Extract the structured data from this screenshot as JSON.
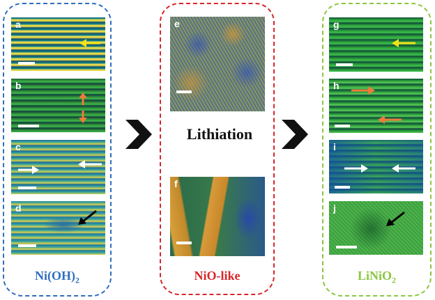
{
  "groups": {
    "nioh2": {
      "label_main": "Ni(OH)",
      "label_sub": "2",
      "color": "#2f6ec0"
    },
    "niolike": {
      "label": "NiO-like",
      "color": "#d8262a"
    },
    "linio2": {
      "label_main": "LiNiO",
      "label_sub": "2",
      "color": "#8cc63f"
    }
  },
  "process_label": "Lithiation",
  "panels": {
    "a": "a",
    "b": "b",
    "c": "c",
    "d": "d",
    "e": "e",
    "f": "f",
    "g": "g",
    "h": "h",
    "i": "i",
    "j": "j"
  },
  "icons": {
    "process_arrows": "chevron-right-icon",
    "annotations": "arrow-icon"
  },
  "arrow_colors": {
    "yellow": "#f2e21a",
    "orange": "#f07a3a",
    "white": "#ffffff",
    "black": "#000000"
  }
}
